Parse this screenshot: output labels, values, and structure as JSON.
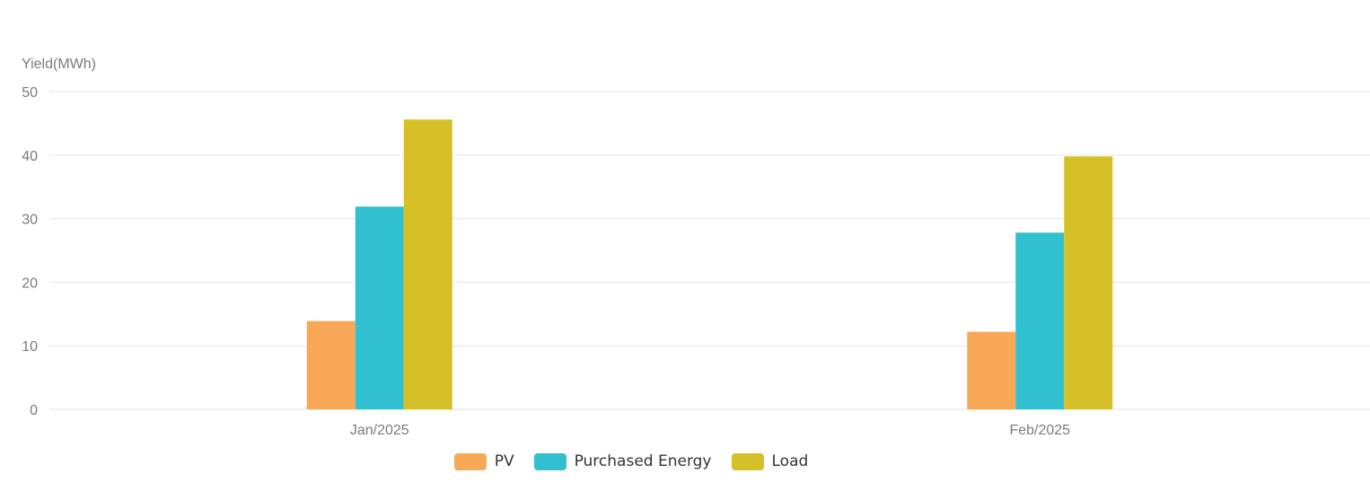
{
  "chart_data": {
    "type": "bar",
    "title": "",
    "ylabel": "Yield(MWh)",
    "xlabel": "",
    "ylim": [
      0,
      50
    ],
    "yticks": [
      0,
      10,
      20,
      30,
      40,
      50
    ],
    "grid": true,
    "legend_position": "bottom",
    "categories": [
      "Jan/2025",
      "Feb/2025"
    ],
    "series": [
      {
        "name": "PV",
        "color": "#f9a857",
        "values": [
          13.9,
          12.2
        ]
      },
      {
        "name": "Purchased Energy",
        "color": "#31c0cf",
        "values": [
          31.9,
          27.8
        ]
      },
      {
        "name": "Load",
        "color": "#d6c027",
        "values": [
          45.6,
          39.8
        ]
      }
    ]
  }
}
